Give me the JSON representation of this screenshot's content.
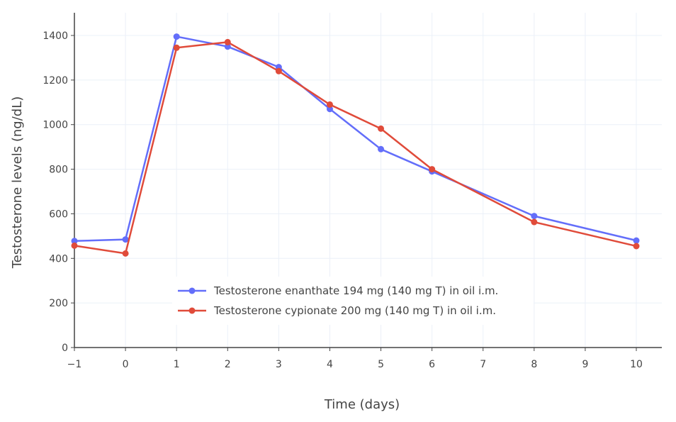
{
  "chart_data": {
    "type": "line",
    "title": "",
    "xlabel": "Time (days)",
    "ylabel": "Testosterone levels (ng/dL)",
    "xlim": [
      -1,
      10.5
    ],
    "ylim": [
      0,
      1500
    ],
    "x_ticks": [
      -1,
      0,
      1,
      2,
      3,
      4,
      5,
      6,
      7,
      8,
      9,
      10
    ],
    "x_tick_labels": [
      "−1",
      "0",
      "1",
      "2",
      "3",
      "4",
      "5",
      "6",
      "7",
      "8",
      "9",
      "10"
    ],
    "y_ticks": [
      0,
      200,
      400,
      600,
      800,
      1000,
      1200,
      1400
    ],
    "y_tick_labels": [
      "0",
      "200",
      "400",
      "600",
      "800",
      "1000",
      "1200",
      "1400"
    ],
    "grid": true,
    "legend_position": "bottom-center",
    "series": [
      {
        "name": "Testosterone enanthate 194 mg (140 mg T) in oil i.m.",
        "color": "#636efa",
        "x": [
          -1,
          0,
          1,
          2,
          3,
          4,
          5,
          6,
          8,
          10
        ],
        "y": [
          478,
          485,
          1395,
          1350,
          1258,
          1070,
          890,
          790,
          590,
          480
        ]
      },
      {
        "name": "Testosterone cypionate 200 mg (140 mg T) in oil i.m.",
        "color": "#e04b3a",
        "x": [
          -1,
          0,
          1,
          2,
          3,
          4,
          5,
          6,
          8,
          10
        ],
        "y": [
          457,
          422,
          1345,
          1370,
          1240,
          1090,
          982,
          800,
          563,
          455
        ]
      }
    ]
  }
}
